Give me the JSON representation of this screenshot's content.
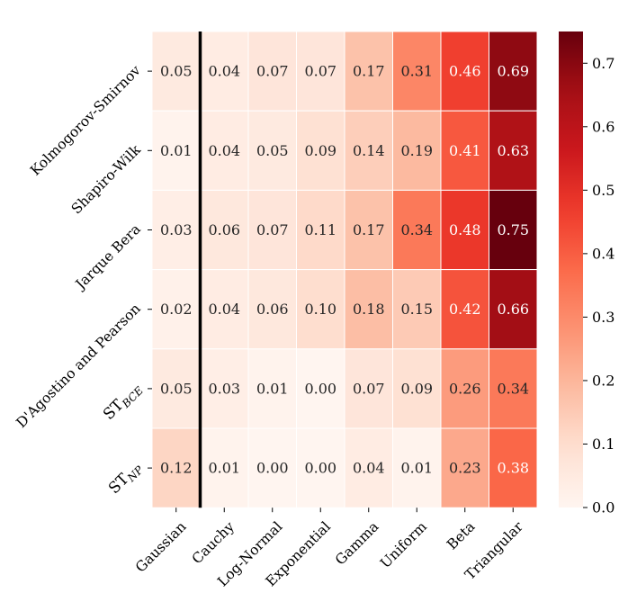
{
  "chart_data": {
    "type": "heatmap",
    "title": "",
    "xlabel": "",
    "ylabel": "",
    "x_categories": [
      "Gaussian",
      "Cauchy",
      "Log-Normal",
      "Exponential",
      "Gamma",
      "Uniform",
      "Beta",
      "Triangular"
    ],
    "y_categories": [
      {
        "base": "Kolmogorov-Smirnov",
        "sub": ""
      },
      {
        "base": "Shapiro-Wilk",
        "sub": ""
      },
      {
        "base": "Jarque Bera",
        "sub": ""
      },
      {
        "base": "D'Agostino and Pearson",
        "sub": ""
      },
      {
        "base": "ST",
        "sub": "BCE"
      },
      {
        "base": "ST",
        "sub": "NP"
      }
    ],
    "values": [
      [
        0.05,
        0.04,
        0.07,
        0.07,
        0.17,
        0.31,
        0.46,
        0.69
      ],
      [
        0.01,
        0.04,
        0.05,
        0.09,
        0.14,
        0.19,
        0.41,
        0.63
      ],
      [
        0.03,
        0.06,
        0.07,
        0.11,
        0.17,
        0.34,
        0.48,
        0.75
      ],
      [
        0.02,
        0.04,
        0.06,
        0.1,
        0.18,
        0.15,
        0.42,
        0.66
      ],
      [
        0.05,
        0.03,
        0.01,
        0.0,
        0.07,
        0.09,
        0.26,
        0.34
      ],
      [
        0.12,
        0.01,
        0.0,
        0.0,
        0.04,
        0.01,
        0.23,
        0.38
      ]
    ],
    "value_format_decimals": 2,
    "colormap": "Reds",
    "vmin": 0.0,
    "vmax": 0.75,
    "colorbar_ticks": [
      "0.0",
      "0.1",
      "0.2",
      "0.3",
      "0.4",
      "0.5",
      "0.6",
      "0.7"
    ],
    "separator_after_column": "Gaussian",
    "colors": {
      "cell_border": "#ffffff",
      "separator": "#000000",
      "dark_text": "#262626",
      "light_text": "#ffffff"
    }
  }
}
